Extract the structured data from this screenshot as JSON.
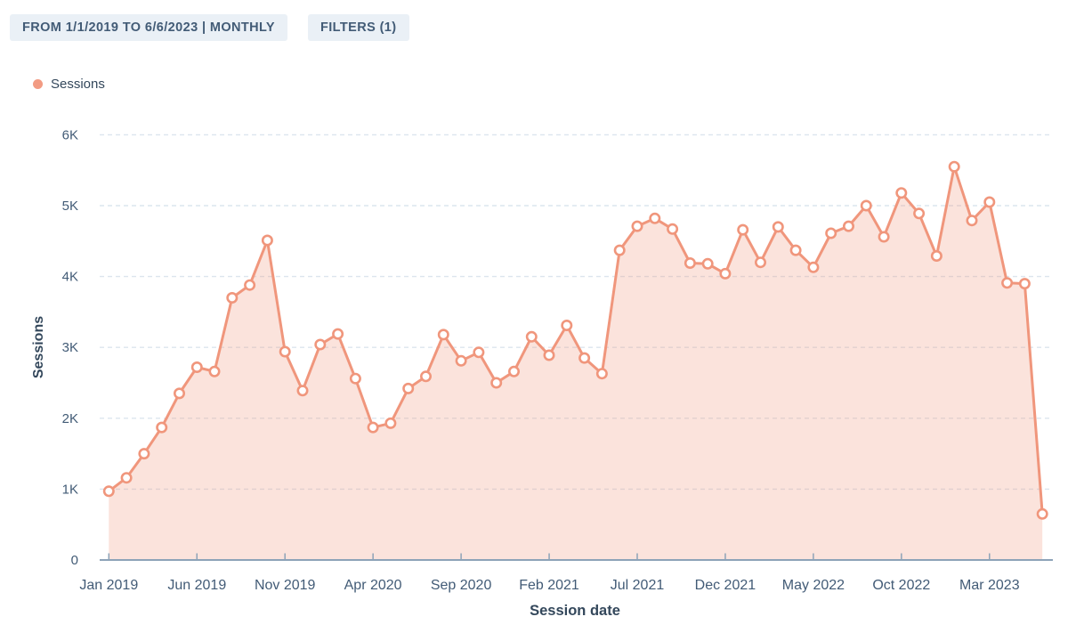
{
  "header": {
    "date_range_label": "FROM 1/1/2019 TO 6/6/2023 | MONTHLY",
    "filters_label": "FILTERS (1)"
  },
  "legend": {
    "items": [
      {
        "label": "Sessions",
        "color": "#f29b83"
      }
    ]
  },
  "chart_data": {
    "type": "area",
    "title": "",
    "xlabel": "Session date",
    "ylabel": "Sessions",
    "ylim": [
      0,
      6000
    ],
    "grid": true,
    "legend_position": "top-left",
    "y_ticks": [
      "0",
      "1K",
      "2K",
      "3K",
      "4K",
      "5K",
      "6K"
    ],
    "x_tick_indices": [
      0,
      5,
      10,
      15,
      20,
      25,
      30,
      35,
      40,
      45,
      50
    ],
    "x_tick_labels": [
      "Jan 2019",
      "Jun 2019",
      "Nov 2019",
      "Apr 2020",
      "Sep 2020",
      "Feb 2021",
      "Jul 2021",
      "Dec 2021",
      "May 2022",
      "Oct 2022",
      "Mar 2023"
    ],
    "categories": [
      "Jan 2019",
      "Feb 2019",
      "Mar 2019",
      "Apr 2019",
      "May 2019",
      "Jun 2019",
      "Jul 2019",
      "Aug 2019",
      "Sep 2019",
      "Oct 2019",
      "Nov 2019",
      "Dec 2019",
      "Jan 2020",
      "Feb 2020",
      "Mar 2020",
      "Apr 2020",
      "May 2020",
      "Jun 2020",
      "Jul 2020",
      "Aug 2020",
      "Sep 2020",
      "Oct 2020",
      "Nov 2020",
      "Dec 2020",
      "Jan 2021",
      "Feb 2021",
      "Mar 2021",
      "Apr 2021",
      "May 2021",
      "Jun 2021",
      "Jul 2021",
      "Aug 2021",
      "Sep 2021",
      "Oct 2021",
      "Nov 2021",
      "Dec 2021",
      "Jan 2022",
      "Feb 2022",
      "Mar 2022",
      "Apr 2022",
      "May 2022",
      "Jun 2022",
      "Jul 2022",
      "Aug 2022",
      "Sep 2022",
      "Oct 2022",
      "Nov 2022",
      "Dec 2022",
      "Jan 2023",
      "Feb 2023",
      "Mar 2023",
      "Apr 2023",
      "May 2023",
      "Jun 2023"
    ],
    "series": [
      {
        "name": "Sessions",
        "values": [
          970,
          1160,
          1500,
          1870,
          2350,
          2720,
          2660,
          3700,
          3880,
          4510,
          2940,
          2390,
          3040,
          3190,
          2560,
          1870,
          1930,
          2420,
          2590,
          3180,
          2810,
          2930,
          2500,
          2660,
          3150,
          2890,
          3310,
          2850,
          2630,
          4370,
          4710,
          4820,
          4670,
          4190,
          4180,
          4040,
          4660,
          4200,
          4700,
          4370,
          4130,
          4610,
          4710,
          5000,
          4560,
          5180,
          4890,
          4290,
          5550,
          4790,
          5050,
          3910,
          3900,
          650
        ]
      }
    ],
    "colors": {
      "line": "#f0967c",
      "fill_effective": "#fbe3dc",
      "marker_fill": "#ffffff",
      "grid": "#dce5ee",
      "axis": "#8da3b8",
      "tick_text": "#425b76"
    }
  }
}
